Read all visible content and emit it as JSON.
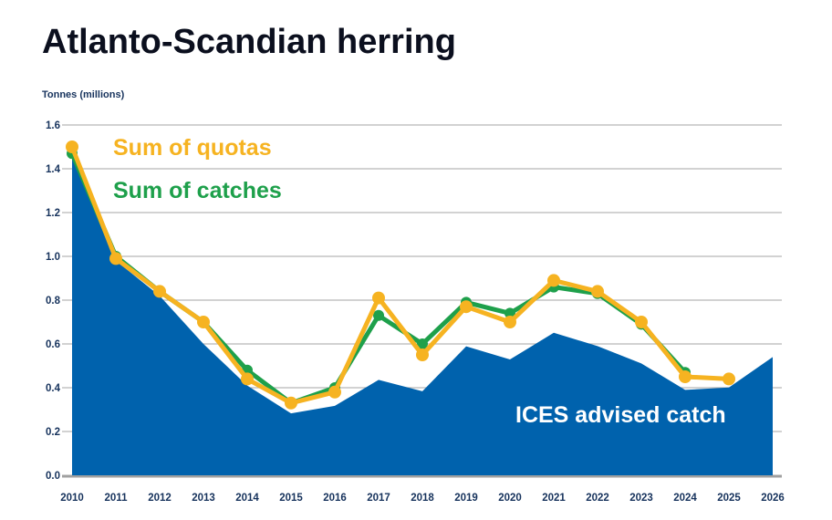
{
  "chart_data": {
    "type": "line",
    "title": "Atlanto-Scandian herring",
    "ylabel": "Tonnes (millions)",
    "ylim": [
      0,
      1.6
    ],
    "yticks": [
      "0.0",
      "0.2",
      "0.4",
      "0.6",
      "0.8",
      "1.0",
      "1.2",
      "1.4",
      "1.6"
    ],
    "x": [
      2010,
      2011,
      2012,
      2013,
      2014,
      2015,
      2016,
      2017,
      2018,
      2019,
      2020,
      2021,
      2022,
      2023,
      2024,
      2025,
      2026
    ],
    "grid": true,
    "colors": {
      "ices": "#0062ad",
      "catches": "#1ea04b",
      "quotas": "#f6b321"
    },
    "series": [
      {
        "name": "ICES advised catch",
        "kind": "area",
        "values": [
          1.47,
          0.98,
          0.82,
          0.6,
          0.41,
          0.283,
          0.317,
          0.436,
          0.384,
          0.589,
          0.529,
          0.651,
          0.59,
          0.511,
          0.39,
          0.401,
          0.54
        ]
      },
      {
        "name": "Sum of catches",
        "kind": "line",
        "values": [
          1.47,
          1.0,
          0.84,
          0.7,
          0.48,
          0.33,
          0.4,
          0.73,
          0.6,
          0.79,
          0.74,
          0.86,
          0.83,
          0.69,
          0.47,
          null,
          null
        ]
      },
      {
        "name": "Sum of quotas",
        "kind": "line",
        "values": [
          1.5,
          0.99,
          0.84,
          0.7,
          0.44,
          0.33,
          0.38,
          0.81,
          0.55,
          0.77,
          0.7,
          0.89,
          0.84,
          0.7,
          0.45,
          0.44,
          null
        ]
      }
    ]
  }
}
